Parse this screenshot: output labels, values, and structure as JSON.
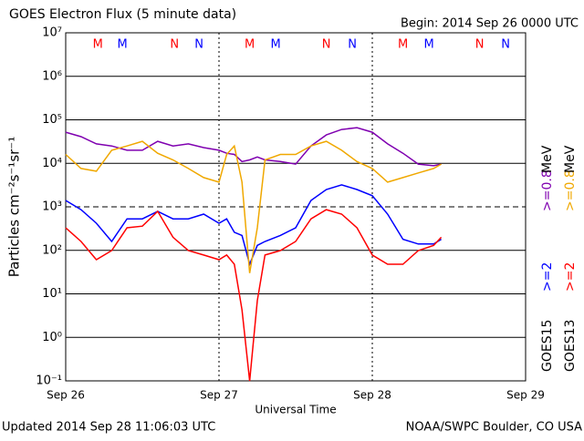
{
  "chart_data": {
    "type": "line",
    "title": "GOES Electron Flux (5 minute data)",
    "subtitle": "Begin: 2014 Sep 26 0000 UTC",
    "xlabel": "Universal Time",
    "ylabel": "Particles cm⁻²s⁻¹sr⁻¹",
    "footer_left": "Updated 2014 Sep 28 11:06:03 UTC",
    "footer_right": "NOAA/SWPC Boulder, CO USA",
    "yscale": "log",
    "ylim": [
      0.1,
      10000000
    ],
    "yticks": [
      {
        "value": 0.1,
        "label": "10⁻¹"
      },
      {
        "value": 1,
        "label": "10⁰"
      },
      {
        "value": 10,
        "label": "10¹"
      },
      {
        "value": 100,
        "label": "10²"
      },
      {
        "value": 1000,
        "label": "10³"
      },
      {
        "value": 10000,
        "label": "10⁴"
      },
      {
        "value": 100000,
        "label": "10⁵"
      },
      {
        "value": 1000000,
        "label": "10⁶"
      },
      {
        "value": 10000000,
        "label": "10⁷"
      }
    ],
    "xlim": [
      0,
      3
    ],
    "xticks": [
      {
        "value": 0,
        "label": "Sep 26"
      },
      {
        "value": 1,
        "label": "Sep 27"
      },
      {
        "value": 2,
        "label": "Sep 28"
      },
      {
        "value": 3,
        "label": "Sep 29"
      }
    ],
    "grid": true,
    "threshold": 1000,
    "x": [
      0,
      0.1,
      0.2,
      0.3,
      0.4,
      0.5,
      0.6,
      0.7,
      0.8,
      0.9,
      1.0,
      1.05,
      1.1,
      1.15,
      1.2,
      1.25,
      1.3,
      1.4,
      1.5,
      1.6,
      1.7,
      1.8,
      1.9,
      2.0,
      2.1,
      2.2,
      2.3,
      2.4,
      2.45
    ],
    "series": [
      {
        "name": ">=2",
        "color": "#0000ff",
        "values": [
          1400,
          860,
          420,
          160,
          530,
          530,
          790,
          530,
          530,
          680,
          420,
          530,
          260,
          220,
          48,
          130,
          160,
          220,
          330,
          1400,
          2500,
          3200,
          2500,
          1800,
          680,
          180,
          140,
          140,
          180
        ]
      },
      {
        "name": ">=0.8",
        "color": "#7f00b0",
        "values": [
          52000,
          41000,
          28000,
          25000,
          20000,
          20000,
          32000,
          25000,
          28000,
          23000,
          20000,
          17000,
          16000,
          11000,
          12000,
          14000,
          12000,
          11000,
          9600,
          25000,
          45000,
          60000,
          66000,
          52000,
          28000,
          17000,
          9600,
          8800,
          9600
        ]
      },
      {
        "name": ">=2",
        "color": "#ff0000",
        "values": [
          330,
          160,
          61,
          99,
          330,
          360,
          790,
          200,
          99,
          78,
          61,
          78,
          48,
          4.3,
          0.1,
          7,
          78,
          99,
          160,
          530,
          860,
          680,
          330,
          78,
          48,
          48,
          99,
          130,
          200
        ]
      },
      {
        "name": ">=0.8",
        "color": "#f0a800",
        "values": [
          16000,
          7600,
          6600,
          20000,
          25000,
          32000,
          17000,
          12000,
          7600,
          4700,
          3700,
          16000,
          25000,
          3700,
          30,
          330,
          12000,
          16000,
          16000,
          25000,
          32000,
          20000,
          11000,
          7600,
          3700,
          4700,
          6000,
          7600,
          9600
        ]
      }
    ],
    "legend_titles": [
      "GOES15",
      "GOES13"
    ],
    "legend_unit": "MeV",
    "markers": [
      {
        "label": "M",
        "x": 0.21,
        "color": "#ff0000"
      },
      {
        "label": "M",
        "x": 0.37,
        "color": "#0000ff"
      },
      {
        "label": "N",
        "x": 0.71,
        "color": "#ff0000"
      },
      {
        "label": "N",
        "x": 0.87,
        "color": "#0000ff"
      },
      {
        "label": "M",
        "x": 1.2,
        "color": "#ff0000"
      },
      {
        "label": "M",
        "x": 1.37,
        "color": "#0000ff"
      },
      {
        "label": "N",
        "x": 1.7,
        "color": "#ff0000"
      },
      {
        "label": "N",
        "x": 1.87,
        "color": "#0000ff"
      },
      {
        "label": "M",
        "x": 2.2,
        "color": "#ff0000"
      },
      {
        "label": "M",
        "x": 2.37,
        "color": "#0000ff"
      },
      {
        "label": "N",
        "x": 2.7,
        "color": "#ff0000"
      },
      {
        "label": "N",
        "x": 2.87,
        "color": "#0000ff"
      }
    ]
  }
}
